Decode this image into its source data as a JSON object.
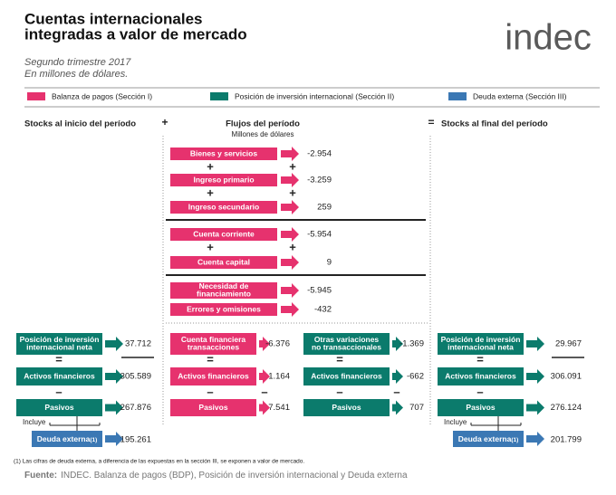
{
  "header": {
    "title_lines": [
      "Cuentas internacionales",
      "integradas a valor de mercado"
    ],
    "subtitle_lines": [
      "Segundo trimestre 2017",
      "En millones de dólares."
    ],
    "logo": "indec"
  },
  "legend": [
    {
      "label": "Balanza de pagos (Sección I)",
      "color": "#e6326e"
    },
    {
      "label": "Posición de inversión internacional (Sección II)",
      "color": "#0b7b6c"
    },
    {
      "label": "Deuda externa (Sección III)",
      "color": "#3b78b4"
    }
  ],
  "operators": {
    "plus": "+",
    "equals": "=",
    "minus": "–"
  },
  "columns": {
    "start": "Stocks al inicio del período",
    "flows": "Flujos del período",
    "flows_unit": "Millones de dólares",
    "end": "Stocks al final del período"
  },
  "flows": [
    {
      "label_lines": [
        "Bienes y servicios"
      ],
      "value": "-2.954"
    },
    {
      "label_lines": [
        "Ingreso primario"
      ],
      "value": "-3.259"
    },
    {
      "label_lines": [
        "Ingreso secundario"
      ],
      "value": "259"
    },
    {
      "label_lines": [
        "Cuenta corriente"
      ],
      "value": "-5.954"
    },
    {
      "label_lines": [
        "Cuenta capital"
      ],
      "value": "9"
    },
    {
      "label_lines": [
        "Necesidad de",
        "financiamiento"
      ],
      "value": "-5.945"
    },
    {
      "label_lines": [
        "Errores y omisiones"
      ],
      "value": "-432"
    }
  ],
  "stocks_start": {
    "items": [
      {
        "label_lines": [
          "Posición de inversión",
          "internacional neta"
        ],
        "value": "37.712"
      },
      {
        "label_lines": [
          "Activos financieros"
        ],
        "value": "305.589"
      },
      {
        "label_lines": [
          "Pasivos"
        ],
        "value": "267.876"
      }
    ],
    "includes": "Incluye",
    "debt": {
      "label": "Deuda externa",
      "note": "(1)",
      "value": "195.261"
    }
  },
  "financial_flows": {
    "transactions": [
      {
        "label_lines": [
          "Cuenta financiera",
          "transacciones"
        ],
        "value": "-6.376"
      },
      {
        "label_lines": [
          "Activos financieros"
        ],
        "value": "1.164"
      },
      {
        "label_lines": [
          "Pasivos"
        ],
        "value": "7.541"
      }
    ],
    "other": [
      {
        "label_lines": [
          "Otras variaciones",
          "no transaccionales"
        ],
        "value": "-1.369"
      },
      {
        "label_lines": [
          "Activos financieros"
        ],
        "value": "-662"
      },
      {
        "label_lines": [
          "Pasivos"
        ],
        "value": "707"
      }
    ]
  },
  "stocks_end": {
    "items": [
      {
        "label_lines": [
          "Posición de inversión",
          "internacional neta"
        ],
        "value": "29.967"
      },
      {
        "label_lines": [
          "Activos financieros"
        ],
        "value": "306.091"
      },
      {
        "label_lines": [
          "Pasivos"
        ],
        "value": "276.124"
      }
    ],
    "includes": "Incluye",
    "debt": {
      "label": "Deuda externa",
      "note": "(1)",
      "value": "201.799"
    }
  },
  "footnote": "(1) Las cifras de deuda externa, a diferencia de las expuestas en la sección III, se exponen a valor de mercado.",
  "source": {
    "label": "Fuente:",
    "text": "INDEC. Balanza de pagos (BDP), Posición de inversión internacional y Deuda externa"
  }
}
